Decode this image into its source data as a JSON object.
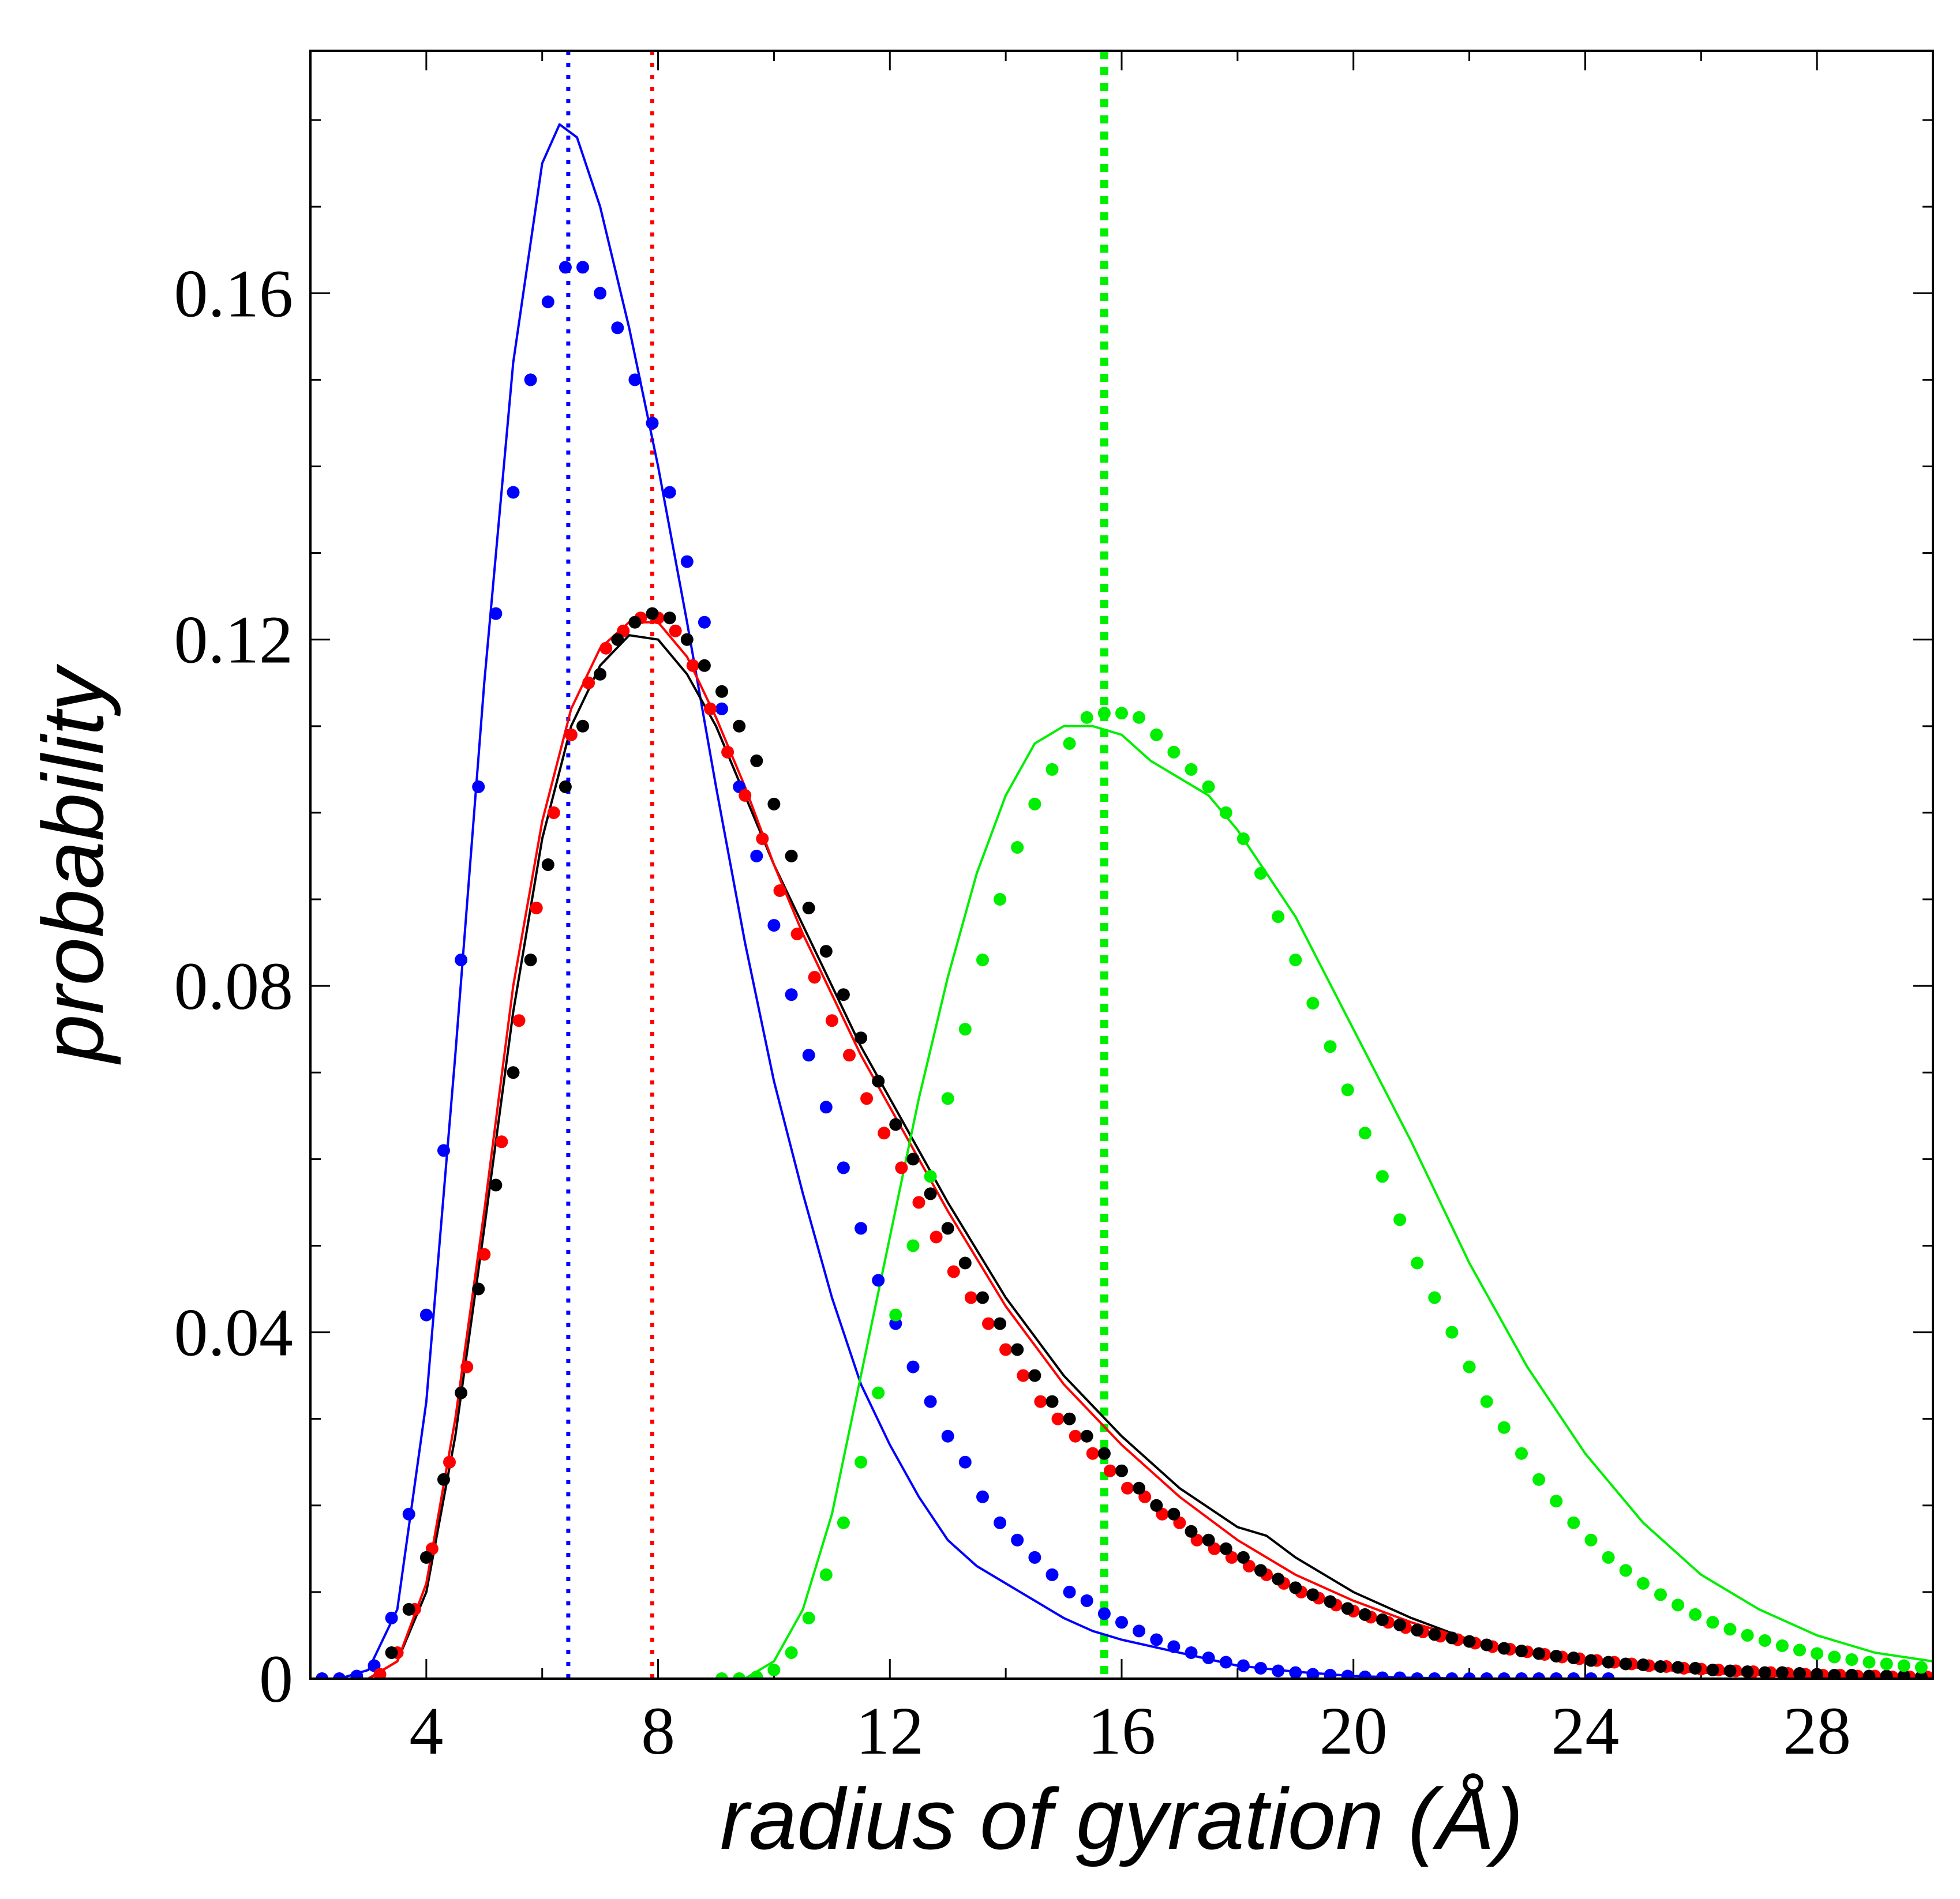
{
  "chart_data": {
    "type": "line",
    "title": "",
    "xlabel": "radius of gyration (Å)",
    "ylabel": "probability",
    "xlim": [
      2,
      30
    ],
    "ylim": [
      0,
      0.188
    ],
    "xticks": [
      4,
      8,
      12,
      16,
      20,
      24,
      28
    ],
    "xtick_labels": [
      "4",
      "8",
      "12",
      "16",
      "20",
      "24",
      "28"
    ],
    "yticks": [
      0,
      0.04,
      0.08,
      0.12,
      0.16
    ],
    "ytick_labels": [
      "0",
      "0.04",
      "0.08",
      "0.12",
      "0.16"
    ],
    "grid": false,
    "vlines": [
      {
        "name": "blue-mean",
        "x": 6.45,
        "color": "#0000ff"
      },
      {
        "name": "red-mean",
        "x": 7.9,
        "color": "#ff0000"
      },
      {
        "name": "green-mean",
        "x": 15.7,
        "color": "#00ee00"
      }
    ],
    "series": [
      {
        "name": "blue-simulation",
        "style": "line",
        "color": "#0000ff",
        "x": [
          2.5,
          3.0,
          3.5,
          4.0,
          4.5,
          5.0,
          5.5,
          6.0,
          6.3,
          6.6,
          7.0,
          7.5,
          8.0,
          8.5,
          9.0,
          9.5,
          10.0,
          10.5,
          11.0,
          11.5,
          12.0,
          12.5,
          13.0,
          13.5,
          14.0,
          14.5,
          15.0,
          15.5,
          16.0,
          17.0,
          18.0,
          19.0,
          20.0,
          21.0,
          22.0
        ],
        "y": [
          0.0,
          0.001,
          0.008,
          0.032,
          0.072,
          0.115,
          0.152,
          0.175,
          0.1795,
          0.178,
          0.17,
          0.156,
          0.14,
          0.122,
          0.103,
          0.085,
          0.069,
          0.056,
          0.044,
          0.034,
          0.027,
          0.021,
          0.016,
          0.013,
          0.011,
          0.009,
          0.007,
          0.0055,
          0.0045,
          0.003,
          0.0015,
          0.0008,
          0.0003,
          0.0001,
          0.0
        ]
      },
      {
        "name": "blue-model",
        "style": "dots",
        "color": "#0000ff",
        "x": [
          2.2,
          2.5,
          2.8,
          3.1,
          3.4,
          3.7,
          4.0,
          4.3,
          4.6,
          4.9,
          5.2,
          5.5,
          5.8,
          6.1,
          6.4,
          6.7,
          7.0,
          7.3,
          7.6,
          7.9,
          8.2,
          8.5,
          8.8,
          9.1,
          9.4,
          9.7,
          10.0,
          10.3,
          10.6,
          10.9,
          11.2,
          11.5,
          11.8,
          12.1,
          12.4,
          12.7,
          13.0,
          13.3,
          13.6,
          13.9,
          14.2,
          14.5,
          14.8,
          15.1,
          15.4,
          15.7,
          16.0,
          16.3,
          16.6,
          16.9,
          17.2,
          17.5,
          17.8,
          18.1,
          18.4,
          18.7,
          19.0,
          19.3,
          19.6,
          19.9,
          20.2,
          20.5,
          20.8,
          21.1,
          21.4,
          21.7,
          22.0,
          22.3,
          22.6,
          22.9,
          23.2,
          23.5,
          23.8,
          24.1,
          24.4
        ],
        "y": [
          0.0,
          0.0,
          0.0003,
          0.0015,
          0.007,
          0.019,
          0.042,
          0.061,
          0.083,
          0.103,
          0.123,
          0.137,
          0.15,
          0.159,
          0.163,
          0.163,
          0.16,
          0.156,
          0.15,
          0.145,
          0.137,
          0.129,
          0.122,
          0.112,
          0.103,
          0.095,
          0.087,
          0.079,
          0.072,
          0.066,
          0.059,
          0.052,
          0.046,
          0.041,
          0.036,
          0.032,
          0.028,
          0.025,
          0.021,
          0.018,
          0.016,
          0.014,
          0.012,
          0.01,
          0.009,
          0.0075,
          0.0065,
          0.0055,
          0.0045,
          0.0037,
          0.003,
          0.0024,
          0.0019,
          0.0015,
          0.0012,
          0.0009,
          0.0007,
          0.0005,
          0.0004,
          0.0003,
          0.0002,
          0.0001,
          0.0001,
          0.0,
          0.0,
          0.0,
          0.0,
          0.0,
          0.0,
          0.0,
          0.0,
          0.0,
          0.0,
          0.0,
          0.0
        ]
      },
      {
        "name": "black-simulation",
        "style": "line",
        "color": "#000000",
        "x": [
          3.0,
          3.5,
          4.0,
          4.5,
          5.0,
          5.5,
          6.0,
          6.5,
          7.0,
          7.5,
          8.0,
          8.5,
          9.0,
          9.5,
          10.0,
          10.5,
          11.0,
          11.5,
          12.0,
          12.5,
          13.0,
          14.0,
          15.0,
          16.0,
          17.0,
          18.0,
          18.5,
          19.0,
          20.0,
          21.0,
          22.0,
          23.0,
          24.0,
          25.0,
          26.0,
          27.0,
          28.0,
          30.0
        ],
        "y": [
          0.0,
          0.002,
          0.01,
          0.028,
          0.052,
          0.077,
          0.097,
          0.11,
          0.117,
          0.1205,
          0.12,
          0.116,
          0.11,
          0.102,
          0.094,
          0.087,
          0.08,
          0.073,
          0.067,
          0.061,
          0.055,
          0.044,
          0.035,
          0.028,
          0.022,
          0.0175,
          0.0165,
          0.014,
          0.01,
          0.007,
          0.0045,
          0.003,
          0.002,
          0.0012,
          0.0007,
          0.0004,
          0.0002,
          0.0
        ]
      },
      {
        "name": "red-simulation",
        "style": "line",
        "color": "#ff0000",
        "x": [
          3.0,
          3.5,
          4.0,
          4.5,
          5.0,
          5.5,
          6.0,
          6.5,
          7.0,
          7.5,
          8.0,
          8.5,
          9.0,
          9.5,
          10.0,
          10.5,
          11.0,
          11.5,
          12.0,
          12.5,
          13.0,
          14.0,
          15.0,
          16.0,
          17.0,
          18.0,
          19.0,
          20.0,
          21.0,
          22.0,
          23.0,
          24.0,
          25.0,
          26.0,
          27.0,
          28.0,
          30.0
        ],
        "y": [
          0.0,
          0.002,
          0.011,
          0.03,
          0.054,
          0.08,
          0.099,
          0.112,
          0.119,
          0.122,
          0.122,
          0.118,
          0.111,
          0.103,
          0.094,
          0.086,
          0.079,
          0.072,
          0.066,
          0.06,
          0.054,
          0.043,
          0.034,
          0.027,
          0.021,
          0.016,
          0.012,
          0.009,
          0.0065,
          0.0045,
          0.003,
          0.002,
          0.0012,
          0.0007,
          0.0004,
          0.0002,
          0.0
        ]
      },
      {
        "name": "red-model",
        "style": "dots",
        "color": "#ff0000",
        "x": [
          3.2,
          3.5,
          3.8,
          4.1,
          4.4,
          4.7,
          5.0,
          5.3,
          5.6,
          5.9,
          6.2,
          6.5,
          6.8,
          7.1,
          7.4,
          7.7,
          8.0,
          8.3,
          8.6,
          8.9,
          9.2,
          9.5,
          9.8,
          10.1,
          10.4,
          10.7,
          11.0,
          11.3,
          11.6,
          11.9,
          12.2,
          12.5,
          12.8,
          13.1,
          13.4,
          13.7,
          14.0,
          14.3,
          14.6,
          14.9,
          15.2,
          15.5,
          15.8,
          16.1,
          16.4,
          16.7,
          17.0,
          17.3,
          17.6,
          17.9,
          18.2,
          18.5,
          18.8,
          19.1,
          19.4,
          19.7,
          20.0,
          20.3,
          20.6,
          20.9,
          21.2,
          21.5,
          21.8,
          22.1,
          22.4,
          22.7,
          23.0,
          23.3,
          23.6,
          23.9,
          24.2,
          24.5,
          24.8,
          25.1,
          25.4,
          25.7,
          26.0,
          26.3,
          26.6,
          26.9,
          27.2,
          27.5,
          27.8,
          28.1,
          28.4,
          28.7,
          29.0,
          29.3,
          29.6,
          29.9
        ],
        "y": [
          0.0005,
          0.003,
          0.008,
          0.015,
          0.025,
          0.036,
          0.049,
          0.062,
          0.076,
          0.089,
          0.1,
          0.109,
          0.115,
          0.119,
          0.121,
          0.1225,
          0.1225,
          0.121,
          0.117,
          0.112,
          0.107,
          0.102,
          0.097,
          0.091,
          0.086,
          0.081,
          0.076,
          0.072,
          0.067,
          0.063,
          0.059,
          0.055,
          0.051,
          0.047,
          0.044,
          0.041,
          0.038,
          0.035,
          0.032,
          0.03,
          0.028,
          0.026,
          0.024,
          0.022,
          0.021,
          0.019,
          0.018,
          0.016,
          0.015,
          0.014,
          0.013,
          0.012,
          0.011,
          0.01,
          0.0093,
          0.0085,
          0.0078,
          0.0071,
          0.0065,
          0.0059,
          0.0054,
          0.0049,
          0.0045,
          0.0041,
          0.0037,
          0.0034,
          0.0031,
          0.0028,
          0.0025,
          0.0023,
          0.0021,
          0.0019,
          0.0017,
          0.0015,
          0.0014,
          0.0012,
          0.0011,
          0.001,
          0.0009,
          0.0008,
          0.0007,
          0.0006,
          0.0005,
          0.0004,
          0.0004,
          0.0003,
          0.0003,
          0.0002,
          0.0002,
          0.0002
        ]
      },
      {
        "name": "black-model",
        "style": "dots",
        "color": "#000000",
        "x": [
          3.4,
          3.7,
          4.0,
          4.3,
          4.6,
          4.9,
          5.2,
          5.5,
          5.8,
          6.1,
          6.4,
          6.7,
          7.0,
          7.3,
          7.6,
          7.9,
          8.2,
          8.5,
          8.8,
          9.1,
          9.4,
          9.7,
          10.0,
          10.3,
          10.6,
          10.9,
          11.2,
          11.5,
          11.8,
          12.1,
          12.4,
          12.7,
          13.0,
          13.3,
          13.6,
          13.9,
          14.2,
          14.5,
          14.8,
          15.1,
          15.4,
          15.7,
          16.0,
          16.3,
          16.6,
          16.9,
          17.2,
          17.5,
          17.8,
          18.1,
          18.4,
          18.7,
          19.0,
          19.3,
          19.6,
          19.9,
          20.2,
          20.5,
          20.8,
          21.1,
          21.4,
          21.7,
          22.0,
          22.3,
          22.6,
          22.9,
          23.2,
          23.5,
          23.8,
          24.1,
          24.4,
          24.7,
          25.0,
          25.3,
          25.6,
          25.9,
          26.2,
          26.5,
          26.8,
          27.1,
          27.4,
          27.7,
          28.0,
          28.3,
          28.6,
          28.9,
          29.2,
          29.5,
          29.8
        ],
        "y": [
          0.003,
          0.008,
          0.014,
          0.023,
          0.033,
          0.045,
          0.057,
          0.07,
          0.083,
          0.094,
          0.103,
          0.11,
          0.116,
          0.12,
          0.122,
          0.123,
          0.1225,
          0.12,
          0.117,
          0.114,
          0.11,
          0.106,
          0.101,
          0.095,
          0.089,
          0.084,
          0.079,
          0.074,
          0.069,
          0.064,
          0.06,
          0.056,
          0.052,
          0.048,
          0.044,
          0.041,
          0.038,
          0.035,
          0.032,
          0.03,
          0.028,
          0.026,
          0.024,
          0.022,
          0.02,
          0.019,
          0.017,
          0.016,
          0.015,
          0.014,
          0.0125,
          0.0115,
          0.0105,
          0.0097,
          0.0089,
          0.0081,
          0.0074,
          0.0068,
          0.0062,
          0.0056,
          0.0051,
          0.0047,
          0.0043,
          0.0039,
          0.0035,
          0.0032,
          0.0029,
          0.0026,
          0.0024,
          0.0021,
          0.0019,
          0.0017,
          0.0016,
          0.0014,
          0.0013,
          0.0012,
          0.001,
          0.0009,
          0.0008,
          0.0007,
          0.0007,
          0.0006,
          0.0005,
          0.0004,
          0.0004,
          0.0003,
          0.0003,
          0.0003,
          0.0002
        ]
      },
      {
        "name": "green-simulation",
        "style": "line",
        "color": "#00ee00",
        "x": [
          9.0,
          9.5,
          10.0,
          10.5,
          11.0,
          11.5,
          12.0,
          12.5,
          13.0,
          13.5,
          14.0,
          14.5,
          15.0,
          15.5,
          16.0,
          16.5,
          17.0,
          17.5,
          18.0,
          19.0,
          20.0,
          21.0,
          22.0,
          23.0,
          24.0,
          25.0,
          26.0,
          27.0,
          28.0,
          29.0,
          30.0
        ],
        "y": [
          0.0,
          0.0,
          0.002,
          0.008,
          0.019,
          0.035,
          0.051,
          0.067,
          0.081,
          0.093,
          0.102,
          0.108,
          0.11,
          0.11,
          0.109,
          0.106,
          0.104,
          0.102,
          0.098,
          0.088,
          0.075,
          0.062,
          0.048,
          0.036,
          0.026,
          0.018,
          0.012,
          0.008,
          0.005,
          0.003,
          0.002
        ]
      },
      {
        "name": "green-model",
        "style": "dots",
        "color": "#00ee00",
        "x": [
          9.1,
          9.4,
          9.7,
          10.0,
          10.3,
          10.6,
          10.9,
          11.2,
          11.5,
          11.8,
          12.1,
          12.4,
          12.7,
          13.0,
          13.3,
          13.6,
          13.9,
          14.2,
          14.5,
          14.8,
          15.1,
          15.4,
          15.7,
          16.0,
          16.3,
          16.6,
          16.9,
          17.2,
          17.5,
          17.8,
          18.1,
          18.4,
          18.7,
          19.0,
          19.3,
          19.6,
          19.9,
          20.2,
          20.5,
          20.8,
          21.1,
          21.4,
          21.7,
          22.0,
          22.3,
          22.6,
          22.9,
          23.2,
          23.5,
          23.8,
          24.1,
          24.4,
          24.7,
          25.0,
          25.3,
          25.6,
          25.9,
          26.2,
          26.5,
          26.8,
          27.1,
          27.4,
          27.7,
          28.0,
          28.3,
          28.6,
          28.9,
          29.2,
          29.5,
          29.8
        ],
        "y": [
          0.0,
          0.0,
          0.0002,
          0.001,
          0.003,
          0.007,
          0.012,
          0.018,
          0.025,
          0.033,
          0.042,
          0.05,
          0.058,
          0.067,
          0.075,
          0.083,
          0.09,
          0.096,
          0.101,
          0.105,
          0.108,
          0.111,
          0.1115,
          0.1115,
          0.111,
          0.109,
          0.107,
          0.105,
          0.103,
          0.1,
          0.097,
          0.093,
          0.088,
          0.083,
          0.078,
          0.073,
          0.068,
          0.063,
          0.058,
          0.053,
          0.048,
          0.044,
          0.04,
          0.036,
          0.032,
          0.029,
          0.026,
          0.023,
          0.0205,
          0.018,
          0.016,
          0.014,
          0.0125,
          0.011,
          0.0097,
          0.0085,
          0.0074,
          0.0065,
          0.0057,
          0.005,
          0.0044,
          0.0038,
          0.0033,
          0.0029,
          0.0025,
          0.0022,
          0.0019,
          0.0017,
          0.0015,
          0.0013
        ]
      }
    ]
  }
}
